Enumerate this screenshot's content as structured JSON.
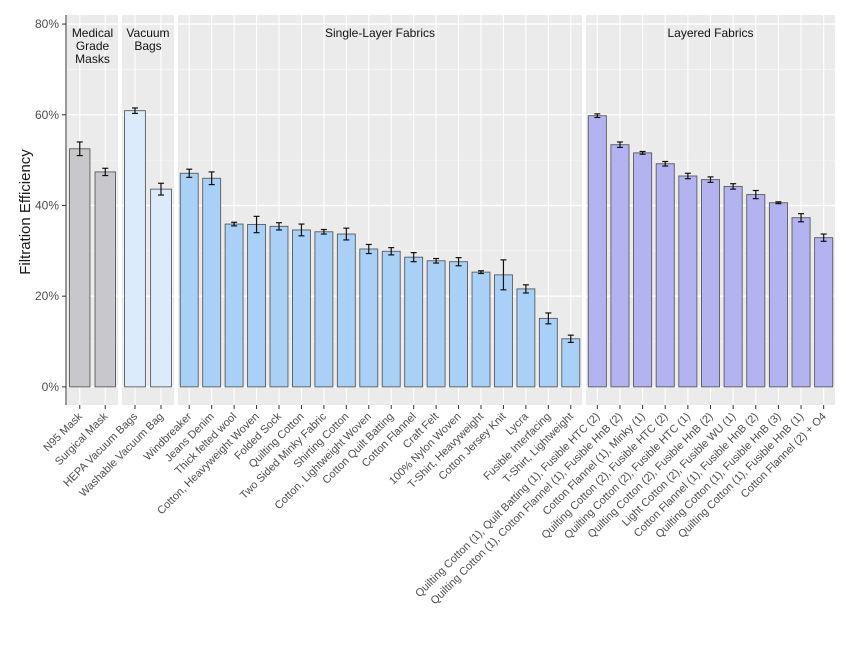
{
  "chart_data": {
    "type": "bar",
    "title": "",
    "xlabel": "",
    "ylabel": "Filtration Efficiency",
    "ylim": [
      -4,
      82
    ],
    "yticks": [
      0,
      20,
      40,
      60,
      80
    ],
    "ytick_labels": [
      "0%",
      "20%",
      "40%",
      "60%",
      "80%"
    ],
    "grid": true,
    "legend": "none",
    "colors": {
      "panel_bg": "#ebebeb",
      "grid": "#ffffff",
      "bar_outline": "#5a5a5a",
      "medical": "#c8c8cc",
      "vacuum": "#dcebfb",
      "single": "#a9d1f7",
      "layered": "#b3b3f2"
    },
    "facets": [
      {
        "label": "Medical Grade Masks",
        "label_lines": [
          "Medical",
          "Grade",
          "Masks"
        ],
        "color_key": "medical",
        "categories": [
          "N95 Mask",
          "Surgical Mask"
        ],
        "values": [
          52.5,
          47.4
        ],
        "errors": [
          1.5,
          0.8
        ]
      },
      {
        "label": "Vacuum Bags",
        "label_lines": [
          "Vacuum",
          "Bags"
        ],
        "color_key": "vacuum",
        "categories": [
          "HEPA Vacuum Bags",
          "Washable Vacuum Bag"
        ],
        "values": [
          60.9,
          43.6
        ],
        "errors": [
          0.6,
          1.3
        ]
      },
      {
        "label": "Single-Layer Fabrics",
        "label_lines": [
          "Single-Layer Fabrics"
        ],
        "color_key": "single",
        "categories": [
          "Windbreaker",
          "Jeans Denim",
          "Thick felted wool",
          "Cotton, Heavyweight Woven",
          "Folded Sock",
          "Quilting Cotton",
          "Two Sided Minky Fabric",
          "Shirting Cotton",
          "Cotton, Lightweight Woven",
          "Cotton Quilt Batting",
          "Cotton Flannel",
          "Craft Felt",
          "100% Nylon Woven",
          "T-Shirt, Heavyweight",
          "Cotton Jersey Knit",
          "Lycra",
          "Fusible Interfacing",
          "T-Shirt, Lightweight"
        ],
        "values": [
          47.1,
          46.0,
          35.9,
          35.8,
          35.4,
          34.6,
          34.2,
          33.7,
          30.4,
          29.9,
          28.6,
          27.8,
          27.6,
          25.3,
          24.7,
          21.6,
          15.1,
          10.6
        ],
        "errors": [
          0.9,
          1.4,
          0.4,
          1.8,
          0.8,
          1.3,
          0.5,
          1.3,
          1.0,
          0.8,
          1.0,
          0.5,
          0.9,
          0.3,
          3.3,
          0.9,
          1.2,
          0.8
        ]
      },
      {
        "label": "Layered Fabrics",
        "label_lines": [
          "Layered Fabrics"
        ],
        "color_key": "layered",
        "categories": [
          "Quilting Cotton (1), Quilt Batting (1), Fusible HTC (2)",
          "Quilting Cotton (1), Cotton Flannel (1), Fusible HnB (2)",
          "Cotton Flannel (1), Minky (1)",
          "Quilting Cotton (2), Fusible HTC (2)",
          "Quilting Cotton (2), Fusible HTC (1)",
          "Quilting Cotton (2), Fusible HnB (2)",
          "Light Cotton (2), Fusible WU (1)",
          "Cotton Flannel (1), Fusible HnB (2)",
          "Quilting Cotton (1), Fusible HnB (3)",
          "Quilting Cotton (1), Fusible HnB (1)",
          "Cotton Flannel (2) + O4"
        ],
        "values": [
          59.8,
          53.4,
          51.6,
          49.2,
          46.5,
          45.7,
          44.2,
          42.4,
          40.6,
          37.3,
          32.9
        ],
        "errors": [
          0.4,
          0.6,
          0.3,
          0.5,
          0.6,
          0.6,
          0.6,
          0.9,
          0.2,
          0.9,
          0.8
        ]
      }
    ]
  }
}
